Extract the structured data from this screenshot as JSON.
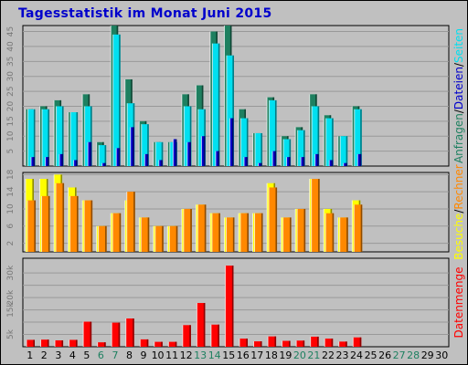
{
  "title": "Tagesstatistik im Monat Juni 2015",
  "colors": {
    "title": "#0000cc",
    "background": "#c0c0c0",
    "plot_bg": "#c0c0c0",
    "grid": "#999999",
    "anfragen": "#1e8060",
    "dateien": "#00e0f0",
    "seiten": "#0000cc",
    "besuche": "#ffff00",
    "rechner": "#ff8800",
    "datenmenge": "#ff0000",
    "weekend_label": "#1e8060",
    "weekday_label": "#000000"
  },
  "chart_data": [
    {
      "type": "bar",
      "panel": "top",
      "axis_label_parts": [
        {
          "text": "Anfragen",
          "color": "#1e8060"
        },
        {
          "text": "/",
          "color": "#000000"
        },
        {
          "text": "Dateien",
          "color": "#0000cc"
        },
        {
          "text": "/",
          "color": "#000000"
        },
        {
          "text": "Seiten",
          "color": "#00e0f0"
        }
      ],
      "ylim": [
        0,
        47
      ],
      "ticks": [
        5,
        10,
        15,
        20,
        25,
        30,
        35,
        40,
        45
      ],
      "tick_labels": [
        "5",
        "10",
        "15",
        "20",
        "25",
        "30",
        "35",
        "40",
        "45"
      ],
      "categories": [
        "1",
        "2",
        "3",
        "4",
        "5",
        "6",
        "7",
        "8",
        "9",
        "10",
        "11",
        "12",
        "13",
        "14",
        "15",
        "16",
        "17",
        "18",
        "19",
        "20",
        "21",
        "22",
        "23",
        "24",
        "25",
        "26",
        "27",
        "28",
        "29",
        "30"
      ],
      "series": [
        {
          "name": "Anfragen",
          "color": "#1e8060",
          "values": [
            19,
            20,
            22,
            18,
            24,
            8,
            47,
            29,
            15,
            8,
            8,
            24,
            27,
            45,
            47,
            19,
            11,
            23,
            10,
            13,
            24,
            17,
            10,
            20,
            0,
            0,
            0,
            0,
            0,
            0
          ]
        },
        {
          "name": "Dateien",
          "color": "#00e0f0",
          "values": [
            19,
            19,
            20,
            18,
            20,
            7,
            44,
            21,
            14,
            8,
            8,
            20,
            19,
            41,
            37,
            16,
            11,
            22,
            9,
            12,
            20,
            16,
            10,
            19,
            0,
            0,
            0,
            0,
            0,
            0
          ]
        },
        {
          "name": "Seiten",
          "color": "#0000cc",
          "values": [
            3,
            3,
            4,
            2,
            8,
            1,
            6,
            13,
            4,
            2,
            9,
            8,
            10,
            5,
            16,
            3,
            1,
            5,
            3,
            3,
            4,
            2,
            1,
            4,
            0,
            0,
            0,
            0,
            0,
            0
          ]
        }
      ]
    },
    {
      "type": "bar",
      "panel": "middle",
      "axis_label_parts": [
        {
          "text": "Besuche",
          "color": "#ffff00"
        },
        {
          "text": "/",
          "color": "#000000"
        },
        {
          "text": "Rechner",
          "color": "#ff8800"
        }
      ],
      "ylim": [
        0,
        18.5
      ],
      "ticks": [
        2,
        6,
        10,
        14,
        18
      ],
      "tick_labels": [
        "2",
        "6",
        "10",
        "14",
        "18"
      ],
      "categories": [
        "1",
        "2",
        "3",
        "4",
        "5",
        "6",
        "7",
        "8",
        "9",
        "10",
        "11",
        "12",
        "13",
        "14",
        "15",
        "16",
        "17",
        "18",
        "19",
        "20",
        "21",
        "22",
        "23",
        "24",
        "25",
        "26",
        "27",
        "28",
        "29",
        "30"
      ],
      "series": [
        {
          "name": "Besuche",
          "color": "#ffff00",
          "values": [
            17,
            17,
            18,
            15,
            12,
            6,
            9,
            12,
            8,
            6,
            6,
            10,
            11,
            9,
            8,
            9,
            9,
            16,
            8,
            10,
            17,
            10,
            8,
            12,
            0,
            0,
            0,
            0,
            0,
            0
          ]
        },
        {
          "name": "Rechner",
          "color": "#ff8800",
          "values": [
            12,
            13,
            16,
            13,
            12,
            6,
            9,
            14,
            8,
            6,
            6,
            10,
            11,
            9,
            8,
            9,
            9,
            15,
            8,
            10,
            17,
            9,
            8,
            11,
            0,
            0,
            0,
            0,
            0,
            0
          ]
        }
      ]
    },
    {
      "type": "bar",
      "panel": "bottom",
      "axis_label_parts": [
        {
          "text": "Datenmenge",
          "color": "#ff0000"
        }
      ],
      "ylim": [
        0,
        36000
      ],
      "ticks": [
        5000,
        10000,
        15000,
        20000,
        25000,
        30000
      ],
      "tick_labels": [
        "5k",
        "",
        "15k",
        "20k",
        "",
        "30k"
      ],
      "categories": [
        "1",
        "2",
        "3",
        "4",
        "5",
        "6",
        "7",
        "8",
        "9",
        "10",
        "11",
        "12",
        "13",
        "14",
        "15",
        "16",
        "17",
        "18",
        "19",
        "20",
        "21",
        "22",
        "23",
        "24",
        "25",
        "26",
        "27",
        "28",
        "29",
        "30"
      ],
      "series": [
        {
          "name": "Datenmenge",
          "color": "#ff0000",
          "values": [
            2800,
            2900,
            2600,
            2800,
            10200,
            1800,
            9800,
            11500,
            3000,
            2000,
            2000,
            8800,
            17800,
            9000,
            33000,
            3300,
            2200,
            4200,
            2400,
            2500,
            4100,
            3300,
            2100,
            3800,
            0,
            0,
            0,
            0,
            0,
            0
          ]
        }
      ]
    }
  ],
  "x_labels": [
    "1",
    "2",
    "3",
    "4",
    "5",
    "6",
    "7",
    "8",
    "9",
    "10",
    "11",
    "12",
    "13",
    "14",
    "15",
    "16",
    "17",
    "18",
    "19",
    "20",
    "21",
    "22",
    "23",
    "24",
    "25",
    "26",
    "27",
    "28",
    "29",
    "30"
  ],
  "weekend_days": [
    "6",
    "7",
    "13",
    "14",
    "20",
    "21",
    "27",
    "28"
  ]
}
